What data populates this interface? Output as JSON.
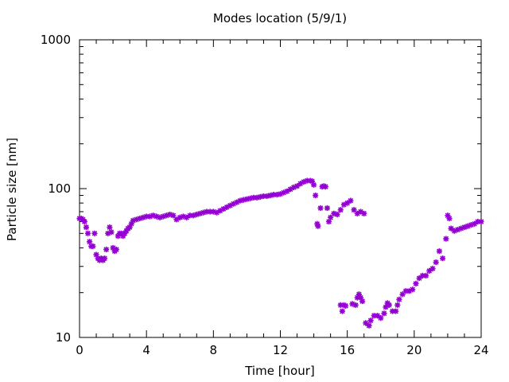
{
  "chart_data": {
    "type": "scatter",
    "title": "Modes location (5/9/1)",
    "xlabel": "Time [hour]",
    "ylabel": "Particle size [nm]",
    "xlim": [
      0,
      24
    ],
    "ylim": [
      10,
      1000
    ],
    "yscale": "log",
    "xticks": [
      "0",
      "4",
      "8",
      "12",
      "16",
      "20",
      "24"
    ],
    "yticks": [
      "10",
      "100",
      "1000"
    ],
    "grid": false,
    "legend": "none",
    "marker_color": "#9400d3",
    "series": [
      {
        "points": [
          [
            0.0,
            63
          ],
          [
            0.1,
            63
          ],
          [
            0.2,
            62
          ],
          [
            0.3,
            60
          ],
          [
            0.4,
            55
          ],
          [
            0.5,
            50
          ],
          [
            0.6,
            44
          ],
          [
            0.7,
            41
          ],
          [
            0.8,
            41
          ],
          [
            0.9,
            50
          ],
          [
            1.0,
            36
          ],
          [
            1.1,
            34
          ],
          [
            1.2,
            33
          ],
          [
            1.3,
            34
          ],
          [
            1.4,
            33
          ],
          [
            1.5,
            34
          ],
          [
            1.6,
            39
          ],
          [
            1.7,
            50
          ],
          [
            1.8,
            55
          ],
          [
            1.9,
            51
          ],
          [
            2.0,
            40
          ],
          [
            2.1,
            38
          ],
          [
            2.2,
            39
          ],
          [
            2.3,
            48
          ],
          [
            2.4,
            50
          ],
          [
            2.5,
            50
          ],
          [
            2.6,
            48
          ],
          [
            2.7,
            50
          ],
          [
            2.8,
            52
          ],
          [
            2.9,
            54
          ],
          [
            3.0,
            55
          ],
          [
            3.1,
            58
          ],
          [
            3.2,
            61
          ],
          [
            3.4,
            62
          ],
          [
            3.6,
            63
          ],
          [
            3.8,
            64
          ],
          [
            4.0,
            65
          ],
          [
            4.2,
            65
          ],
          [
            4.4,
            66
          ],
          [
            4.6,
            65
          ],
          [
            4.8,
            64
          ],
          [
            5.0,
            65
          ],
          [
            5.2,
            66
          ],
          [
            5.4,
            67
          ],
          [
            5.6,
            66
          ],
          [
            5.8,
            62
          ],
          [
            6.0,
            64
          ],
          [
            6.2,
            65
          ],
          [
            6.4,
            64
          ],
          [
            6.6,
            66
          ],
          [
            6.8,
            66
          ],
          [
            7.0,
            67
          ],
          [
            7.2,
            68
          ],
          [
            7.4,
            69
          ],
          [
            7.6,
            70
          ],
          [
            7.8,
            70
          ],
          [
            8.0,
            70
          ],
          [
            8.2,
            69
          ],
          [
            8.4,
            71
          ],
          [
            8.6,
            73
          ],
          [
            8.8,
            75
          ],
          [
            9.0,
            77
          ],
          [
            9.2,
            79
          ],
          [
            9.4,
            81
          ],
          [
            9.6,
            83
          ],
          [
            9.8,
            84
          ],
          [
            10.0,
            85
          ],
          [
            10.2,
            86
          ],
          [
            10.4,
            87
          ],
          [
            10.6,
            87
          ],
          [
            10.8,
            88
          ],
          [
            11.0,
            89
          ],
          [
            11.2,
            89
          ],
          [
            11.4,
            90
          ],
          [
            11.6,
            91
          ],
          [
            11.8,
            91
          ],
          [
            12.0,
            92
          ],
          [
            12.2,
            94
          ],
          [
            12.4,
            96
          ],
          [
            12.6,
            99
          ],
          [
            12.8,
            102
          ],
          [
            13.0,
            104
          ],
          [
            13.2,
            108
          ],
          [
            13.4,
            111
          ],
          [
            13.6,
            113
          ],
          [
            13.8,
            113
          ],
          [
            13.9,
            112
          ],
          [
            14.0,
            106
          ],
          [
            14.1,
            90
          ],
          [
            14.2,
            58
          ],
          [
            14.25,
            56
          ],
          [
            14.4,
            74
          ],
          [
            14.5,
            103
          ],
          [
            14.6,
            104
          ],
          [
            14.7,
            103
          ],
          [
            14.8,
            74
          ],
          [
            14.9,
            60
          ],
          [
            15.0,
            64
          ],
          [
            15.2,
            68
          ],
          [
            15.4,
            67
          ],
          [
            15.6,
            72
          ],
          [
            15.8,
            78
          ],
          [
            16.0,
            80
          ],
          [
            16.2,
            83
          ],
          [
            16.4,
            72
          ],
          [
            16.6,
            68
          ],
          [
            16.8,
            70
          ],
          [
            17.0,
            68
          ],
          [
            15.6,
            16.5
          ],
          [
            15.7,
            15.0
          ],
          [
            15.8,
            16.5
          ],
          [
            15.9,
            16.3
          ],
          [
            16.3,
            16.8
          ],
          [
            16.5,
            16.5
          ],
          [
            16.6,
            18.5
          ],
          [
            16.7,
            19.5
          ],
          [
            16.8,
            18.5
          ],
          [
            16.9,
            17.5
          ],
          [
            17.1,
            12.5
          ],
          [
            17.3,
            12.0
          ],
          [
            17.4,
            13.0
          ],
          [
            17.6,
            14.0
          ],
          [
            17.8,
            14.0
          ],
          [
            18.0,
            13.5
          ],
          [
            18.2,
            14.5
          ],
          [
            18.3,
            16.0
          ],
          [
            18.4,
            17.0
          ],
          [
            18.5,
            16.5
          ],
          [
            18.7,
            15.0
          ],
          [
            18.9,
            15.0
          ],
          [
            19.0,
            16.5
          ],
          [
            19.1,
            18.0
          ],
          [
            19.3,
            19.5
          ],
          [
            19.5,
            20.5
          ],
          [
            19.7,
            20.5
          ],
          [
            19.9,
            21.0
          ],
          [
            20.1,
            23.0
          ],
          [
            20.3,
            25.0
          ],
          [
            20.5,
            26.0
          ],
          [
            20.7,
            26.0
          ],
          [
            20.9,
            28.0
          ],
          [
            21.1,
            29.0
          ],
          [
            21.3,
            32.0
          ],
          [
            21.5,
            38.0
          ],
          [
            21.7,
            34.0
          ],
          [
            21.9,
            46.0
          ],
          [
            22.0,
            66.0
          ],
          [
            22.1,
            63.0
          ],
          [
            22.2,
            54.0
          ],
          [
            22.4,
            52.0
          ],
          [
            22.6,
            53.0
          ],
          [
            22.8,
            54.0
          ],
          [
            23.0,
            55.0
          ],
          [
            23.2,
            56.0
          ],
          [
            23.4,
            57.0
          ],
          [
            23.6,
            58.0
          ],
          [
            23.8,
            60.0
          ],
          [
            24.0,
            60.0
          ]
        ]
      }
    ]
  }
}
